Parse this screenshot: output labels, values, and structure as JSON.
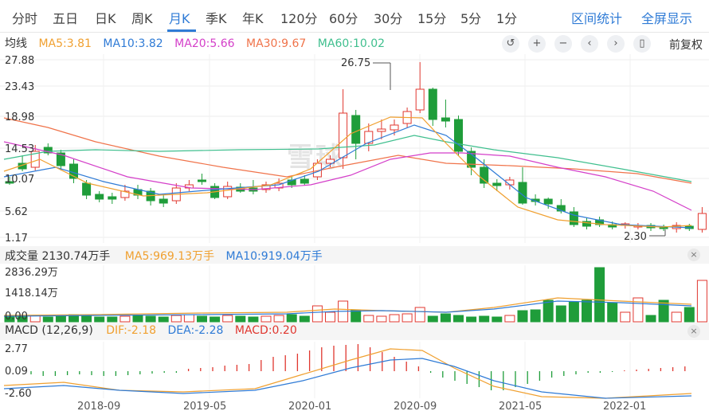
{
  "tabs": [
    {
      "label": "分时",
      "active": false
    },
    {
      "label": "五日",
      "active": false
    },
    {
      "label": "日K",
      "active": false
    },
    {
      "label": "周K",
      "active": false
    },
    {
      "label": "月K",
      "active": true
    },
    {
      "label": "季K",
      "active": false
    },
    {
      "label": "年K",
      "active": false
    },
    {
      "label": "120分",
      "active": false
    },
    {
      "label": "60分",
      "active": false
    },
    {
      "label": "30分",
      "active": false
    },
    {
      "label": "15分",
      "active": false
    },
    {
      "label": "5分",
      "active": false
    },
    {
      "label": "1分",
      "active": false
    }
  ],
  "toolbar": {
    "interval_stats": "区间统计",
    "fullscreen": "全屏显示",
    "adjust": "前复权"
  },
  "ma_legend": {
    "title": "均线",
    "items": [
      {
        "label": "MA5:3.81",
        "color": "#f0a030"
      },
      {
        "label": "MA10:3.82",
        "color": "#2f7bd6"
      },
      {
        "label": "MA20:5.66",
        "color": "#d43fc9"
      },
      {
        "label": "MA30:9.67",
        "color": "#f0734a"
      },
      {
        "label": "MA60:10.02",
        "color": "#3fbf8e"
      }
    ]
  },
  "vol_legend": {
    "title": "成交量 2130.74万手",
    "items": [
      {
        "label": "MA5:969.13万手",
        "color": "#f0a030"
      },
      {
        "label": "MA10:919.04万手",
        "color": "#2f7bd6"
      }
    ]
  },
  "macd_legend": {
    "title": "MACD (12,26,9)",
    "items": [
      {
        "label": "DIF:-2.18",
        "color": "#f0a030"
      },
      {
        "label": "DEA:-2.28",
        "color": "#2f7bd6"
      },
      {
        "label": "MACD:0.20",
        "color": "#e0372f"
      }
    ]
  },
  "price_axis": [
    "27.88",
    "23.43",
    "18.98",
    "14.53",
    "10.07",
    "5.62",
    "1.17"
  ],
  "vol_axis": [
    "2836.29万",
    "1418.14万",
    "0.00"
  ],
  "macd_axis": [
    "2.77",
    "0.09",
    "-2.60"
  ],
  "date_axis": [
    "2018-09",
    "2019-05",
    "2020-01",
    "2020-09",
    "2021-05",
    "2022-01"
  ],
  "annotations": {
    "high": "26.75",
    "low": "2.30"
  },
  "watermark": "雪球",
  "colors": {
    "up": "#e0372f",
    "down": "#1f9d3a"
  }
}
